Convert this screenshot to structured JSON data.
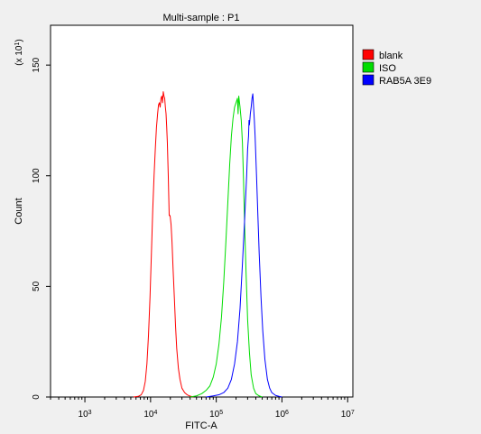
{
  "chart_data": {
    "type": "histogram",
    "title": "Multi-sample : P1",
    "xlabel": "FITC-A",
    "ylabel": "Count",
    "y_multiplier_label": "(x 10",
    "y_multiplier_exp": "1",
    "x_scale": "log",
    "xlim": [
      300,
      12000000
    ],
    "ylim": [
      0,
      168
    ],
    "x_ticks": [
      {
        "value": 1000,
        "base": "10",
        "exp": "3"
      },
      {
        "value": 10000,
        "base": "10",
        "exp": "4"
      },
      {
        "value": 100000,
        "base": "10",
        "exp": "5"
      },
      {
        "value": 1000000,
        "base": "10",
        "exp": "6"
      },
      {
        "value": 10000000,
        "base": "10",
        "exp": "7"
      }
    ],
    "y_ticks": [
      0,
      50,
      100,
      150
    ],
    "legend_position": "right",
    "series": [
      {
        "name": "blank",
        "color": "#ff0000",
        "points": [
          [
            5500,
            0
          ],
          [
            6500,
            0.3
          ],
          [
            7200,
            1
          ],
          [
            7800,
            3
          ],
          [
            8300,
            7
          ],
          [
            8800,
            15
          ],
          [
            9300,
            28
          ],
          [
            9800,
            45
          ],
          [
            10300,
            65
          ],
          [
            10800,
            85
          ],
          [
            11300,
            100
          ],
          [
            11800,
            112
          ],
          [
            12300,
            122
          ],
          [
            12800,
            128
          ],
          [
            13200,
            132
          ],
          [
            13600,
            133
          ],
          [
            14000,
            131
          ],
          [
            14400,
            135
          ],
          [
            14800,
            136
          ],
          [
            15200,
            133
          ],
          [
            15600,
            138
          ],
          [
            16000,
            136
          ],
          [
            16400,
            135
          ],
          [
            16800,
            131
          ],
          [
            17200,
            128
          ],
          [
            17600,
            122
          ],
          [
            18000,
            115
          ],
          [
            18600,
            100
          ],
          [
            19200,
            82
          ],
          [
            19800,
            82
          ],
          [
            20500,
            78
          ],
          [
            21200,
            70
          ],
          [
            22000,
            58
          ],
          [
            23000,
            45
          ],
          [
            24000,
            32
          ],
          [
            25000,
            22
          ],
          [
            26500,
            13
          ],
          [
            28000,
            8
          ],
          [
            30000,
            4
          ],
          [
            33000,
            2
          ],
          [
            36000,
            1
          ],
          [
            40000,
            0.4
          ],
          [
            45000,
            0
          ]
        ]
      },
      {
        "name": "ISO",
        "color": "#00dd00",
        "points": [
          [
            40000,
            0
          ],
          [
            50000,
            0.5
          ],
          [
            60000,
            1.5
          ],
          [
            70000,
            3
          ],
          [
            80000,
            5
          ],
          [
            90000,
            9
          ],
          [
            100000,
            15
          ],
          [
            110000,
            24
          ],
          [
            120000,
            36
          ],
          [
            130000,
            52
          ],
          [
            140000,
            70
          ],
          [
            150000,
            88
          ],
          [
            160000,
            105
          ],
          [
            170000,
            118
          ],
          [
            180000,
            126
          ],
          [
            190000,
            131
          ],
          [
            200000,
            133
          ],
          [
            210000,
            135
          ],
          [
            215000,
            128
          ],
          [
            220000,
            136
          ],
          [
            230000,
            131
          ],
          [
            240000,
            125
          ],
          [
            250000,
            115
          ],
          [
            260000,
            98
          ],
          [
            270000,
            78
          ],
          [
            285000,
            55
          ],
          [
            300000,
            35
          ],
          [
            320000,
            20
          ],
          [
            340000,
            10
          ],
          [
            370000,
            4
          ],
          [
            400000,
            1.5
          ],
          [
            450000,
            0.5
          ],
          [
            500000,
            0
          ]
        ]
      },
      {
        "name": "RAB5A  3E9",
        "color": "#0000ff",
        "points": [
          [
            70000,
            0
          ],
          [
            90000,
            0.5
          ],
          [
            110000,
            1
          ],
          [
            130000,
            2
          ],
          [
            150000,
            4
          ],
          [
            170000,
            8
          ],
          [
            190000,
            15
          ],
          [
            210000,
            25
          ],
          [
            230000,
            40
          ],
          [
            250000,
            60
          ],
          [
            270000,
            80
          ],
          [
            290000,
            100
          ],
          [
            300000,
            112
          ],
          [
            310000,
            118
          ],
          [
            315000,
            125
          ],
          [
            320000,
            123
          ],
          [
            330000,
            128
          ],
          [
            340000,
            131
          ],
          [
            350000,
            135
          ],
          [
            360000,
            137
          ],
          [
            370000,
            131
          ],
          [
            380000,
            125
          ],
          [
            390000,
            118
          ],
          [
            410000,
            100
          ],
          [
            430000,
            82
          ],
          [
            450000,
            65
          ],
          [
            480000,
            45
          ],
          [
            510000,
            30
          ],
          [
            550000,
            17
          ],
          [
            600000,
            8
          ],
          [
            650000,
            4
          ],
          [
            700000,
            2
          ],
          [
            800000,
            0.7
          ],
          [
            900000,
            0.3
          ],
          [
            1000000,
            0
          ]
        ]
      }
    ]
  }
}
